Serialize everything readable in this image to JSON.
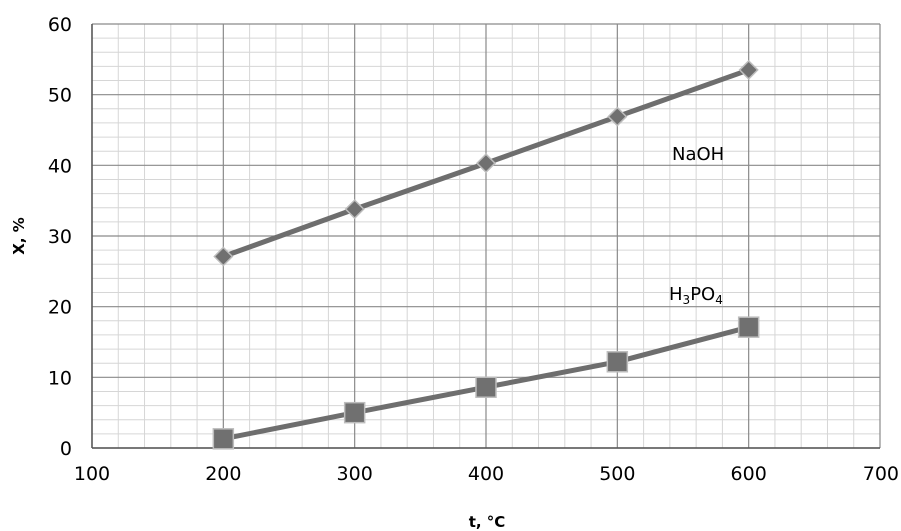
{
  "chart_data": {
    "type": "line",
    "xlabel": "t, °C",
    "ylabel": "X, %",
    "xlim": [
      100,
      700
    ],
    "ylim": [
      0,
      60
    ],
    "x_ticks": [
      "100",
      "200",
      "300",
      "400",
      "500",
      "600",
      "700"
    ],
    "y_ticks": [
      "0",
      "10",
      "20",
      "30",
      "40",
      "50",
      "60"
    ],
    "grid": true,
    "legend": "none",
    "x": [
      200,
      300,
      400,
      500,
      600
    ],
    "series": [
      {
        "name": "NaOH",
        "label": {
          "main": "NaOH"
        },
        "marker": "diamond",
        "values": [
          27.1,
          33.8,
          40.3,
          46.9,
          53.5
        ],
        "color": "#6e6e6e"
      },
      {
        "name": "H3PO4",
        "label": {
          "main": "H",
          "sub1": "3",
          "mid": "PO",
          "sub2": "4"
        },
        "marker": "square",
        "values": [
          1.3,
          5.0,
          8.6,
          12.2,
          17.1
        ],
        "color": "#6e6e6e"
      }
    ]
  }
}
